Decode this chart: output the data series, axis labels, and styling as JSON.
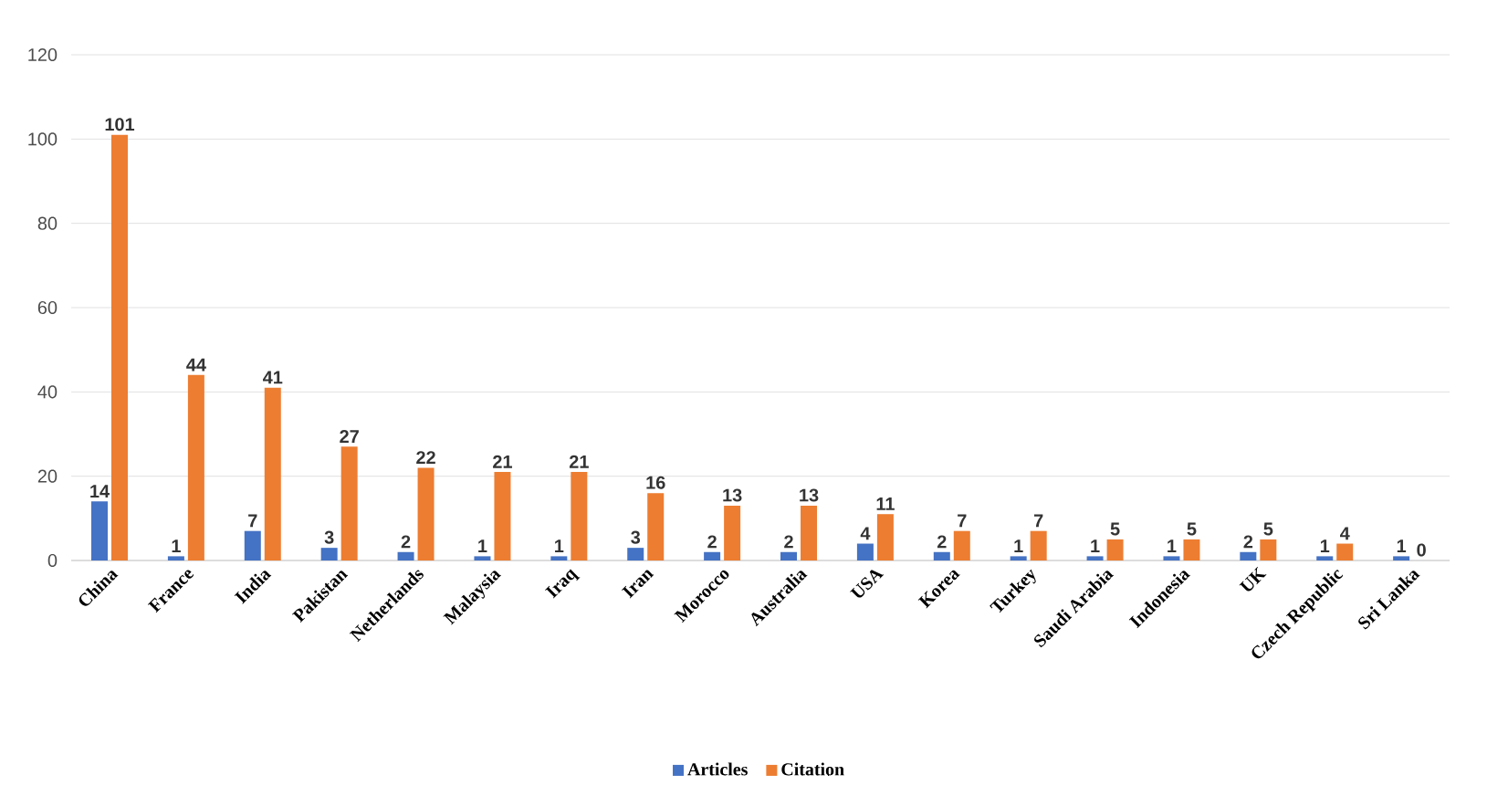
{
  "chart_data": {
    "type": "bar",
    "categories": [
      "China",
      "France",
      "India",
      "Pakistan",
      "Netherlands",
      "Malaysia",
      "Iraq",
      "Iran",
      "Morocco",
      "Australia",
      "USA",
      "Korea",
      "Turkey",
      "Saudi Arabia",
      "Indonesia",
      "UK",
      "Czech Republic",
      "Sri Lanka"
    ],
    "series": [
      {
        "name": "Articles",
        "color": "#4472c4",
        "values": [
          14,
          1,
          7,
          3,
          2,
          1,
          1,
          3,
          2,
          2,
          4,
          2,
          1,
          1,
          1,
          2,
          1,
          1
        ]
      },
      {
        "name": "Citation",
        "color": "#ed7d31",
        "values": [
          101,
          44,
          41,
          27,
          22,
          21,
          21,
          16,
          13,
          13,
          11,
          7,
          7,
          5,
          5,
          5,
          4,
          0
        ]
      }
    ],
    "ylim": [
      0,
      120
    ],
    "yticks": [
      0,
      20,
      40,
      60,
      80,
      100,
      120
    ],
    "grid": "y",
    "legend": "bottom",
    "data_labels": true
  }
}
